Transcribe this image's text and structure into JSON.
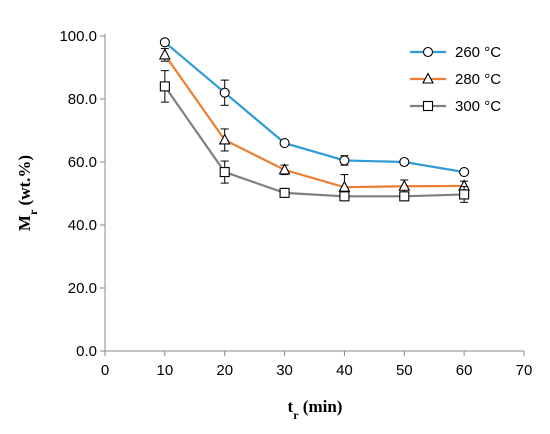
{
  "chart_data": {
    "type": "line",
    "xlabel": {
      "main": "t",
      "sub": "r",
      "rest": " (min)"
    },
    "ylabel": {
      "main": "M",
      "sub": "r",
      "rest": " (wt.%)"
    },
    "xlim": [
      0,
      70
    ],
    "ylim": [
      0,
      100
    ],
    "xticks": [
      0,
      10,
      20,
      30,
      40,
      50,
      60,
      70
    ],
    "yticks": [
      0,
      20,
      40,
      60,
      80,
      100
    ],
    "ytick_labels": [
      "0.0",
      "20.0",
      "40.0",
      "60.0",
      "80.0",
      "100.0"
    ],
    "grid": false,
    "legend_position": "top-right",
    "x": [
      10,
      20,
      30,
      40,
      50,
      60
    ],
    "series": [
      {
        "name": "260 °C",
        "color": "#2E9BD6",
        "marker": "circle",
        "values": [
          98.0,
          82.0,
          66.0,
          60.5,
          60.0,
          56.8
        ],
        "errors": [
          0.8,
          4.0,
          0.8,
          1.5,
          0.8,
          0.8
        ]
      },
      {
        "name": "280 °C",
        "color": "#ED7D31",
        "marker": "triangle",
        "values": [
          94.0,
          67.0,
          57.5,
          52.0,
          52.3,
          52.4
        ],
        "errors": [
          2.0,
          3.5,
          1.5,
          4.0,
          2.0,
          1.5
        ]
      },
      {
        "name": "300 °C",
        "color": "#7F7F7F",
        "marker": "square",
        "values": [
          84.0,
          56.8,
          50.2,
          49.1,
          49.1,
          49.7
        ],
        "errors": [
          5.0,
          3.5,
          0.8,
          1.2,
          1.0,
          2.5
        ]
      }
    ]
  }
}
